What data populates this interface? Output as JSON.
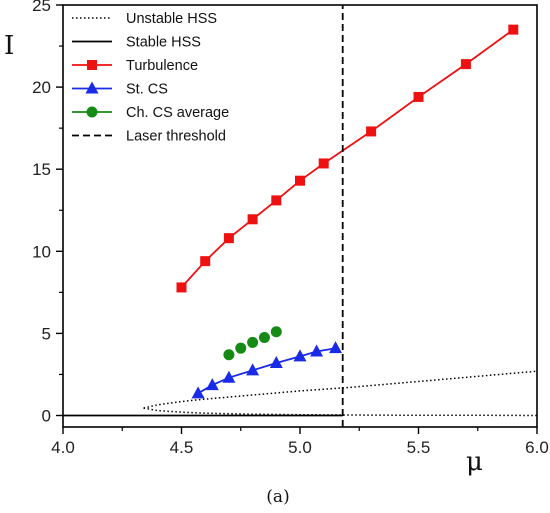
{
  "chart_data": {
    "type": "line",
    "xlabel": "μ",
    "ylabel": "I",
    "caption": "(a)",
    "xlim": [
      4.0,
      6.0
    ],
    "ylim": [
      -0.7,
      25
    ],
    "x_ticks": [
      4.0,
      4.5,
      5.0,
      5.5,
      6.0
    ],
    "x_tick_labels": [
      "4.0",
      "4.5",
      "5.0",
      "5.5",
      "6.0"
    ],
    "y_ticks": [
      0,
      5,
      10,
      15,
      20,
      25
    ],
    "y_tick_labels": [
      "0",
      "5",
      "10",
      "15",
      "20",
      "25"
    ],
    "grid": false,
    "legend_position": "top-left",
    "series": [
      {
        "name": "Unstable HSS",
        "style": "dotted",
        "color": "#000000",
        "marker": "none",
        "upper_branch": {
          "x": [
            4.34,
            4.4,
            4.5,
            4.6,
            4.8,
            5.0,
            5.2,
            5.4,
            5.6,
            5.8,
            6.0
          ],
          "y": [
            0.45,
            0.65,
            0.85,
            1.0,
            1.25,
            1.5,
            1.7,
            1.95,
            2.2,
            2.45,
            2.7
          ]
        },
        "lower_branch": {
          "x": [
            4.34,
            4.4,
            4.5,
            4.6,
            4.8,
            5.0,
            5.2,
            5.4,
            5.6,
            5.8,
            6.0
          ],
          "y": [
            0.45,
            0.3,
            0.2,
            0.14,
            0.08,
            0.05,
            0.03,
            0.02,
            0.01,
            0.01,
            0.0
          ]
        }
      },
      {
        "name": "Stable HSS",
        "style": "solid",
        "color": "#000000",
        "marker": "none",
        "x": [
          4.0,
          5.18
        ],
        "y": [
          0.0,
          0.0
        ]
      },
      {
        "name": "Turbulence",
        "style": "solid",
        "color": "#ee1111",
        "marker": "square",
        "x": [
          4.5,
          4.6,
          4.7,
          4.8,
          4.9,
          5.0,
          5.1,
          5.3,
          5.5,
          5.7,
          5.9
        ],
        "y": [
          7.8,
          9.4,
          10.8,
          11.95,
          13.1,
          14.3,
          15.35,
          17.3,
          19.4,
          21.4,
          23.5
        ]
      },
      {
        "name": "St. CS",
        "style": "solid",
        "color": "#1a2be8",
        "marker": "triangle",
        "x": [
          4.57,
          4.63,
          4.7,
          4.8,
          4.9,
          5.0,
          5.07,
          5.15
        ],
        "y": [
          1.35,
          1.85,
          2.3,
          2.75,
          3.2,
          3.6,
          3.9,
          4.1
        ]
      },
      {
        "name": "Ch. CS average",
        "style": "none",
        "color": "#158a15",
        "marker": "circle",
        "x": [
          4.7,
          4.75,
          4.8,
          4.85,
          4.9
        ],
        "y": [
          3.7,
          4.1,
          4.45,
          4.75,
          5.1
        ]
      },
      {
        "name": "Laser threshold",
        "style": "dashed",
        "color": "#000000",
        "marker": "none",
        "x": [
          5.18,
          5.18
        ],
        "y": [
          -0.7,
          25
        ]
      }
    ]
  }
}
